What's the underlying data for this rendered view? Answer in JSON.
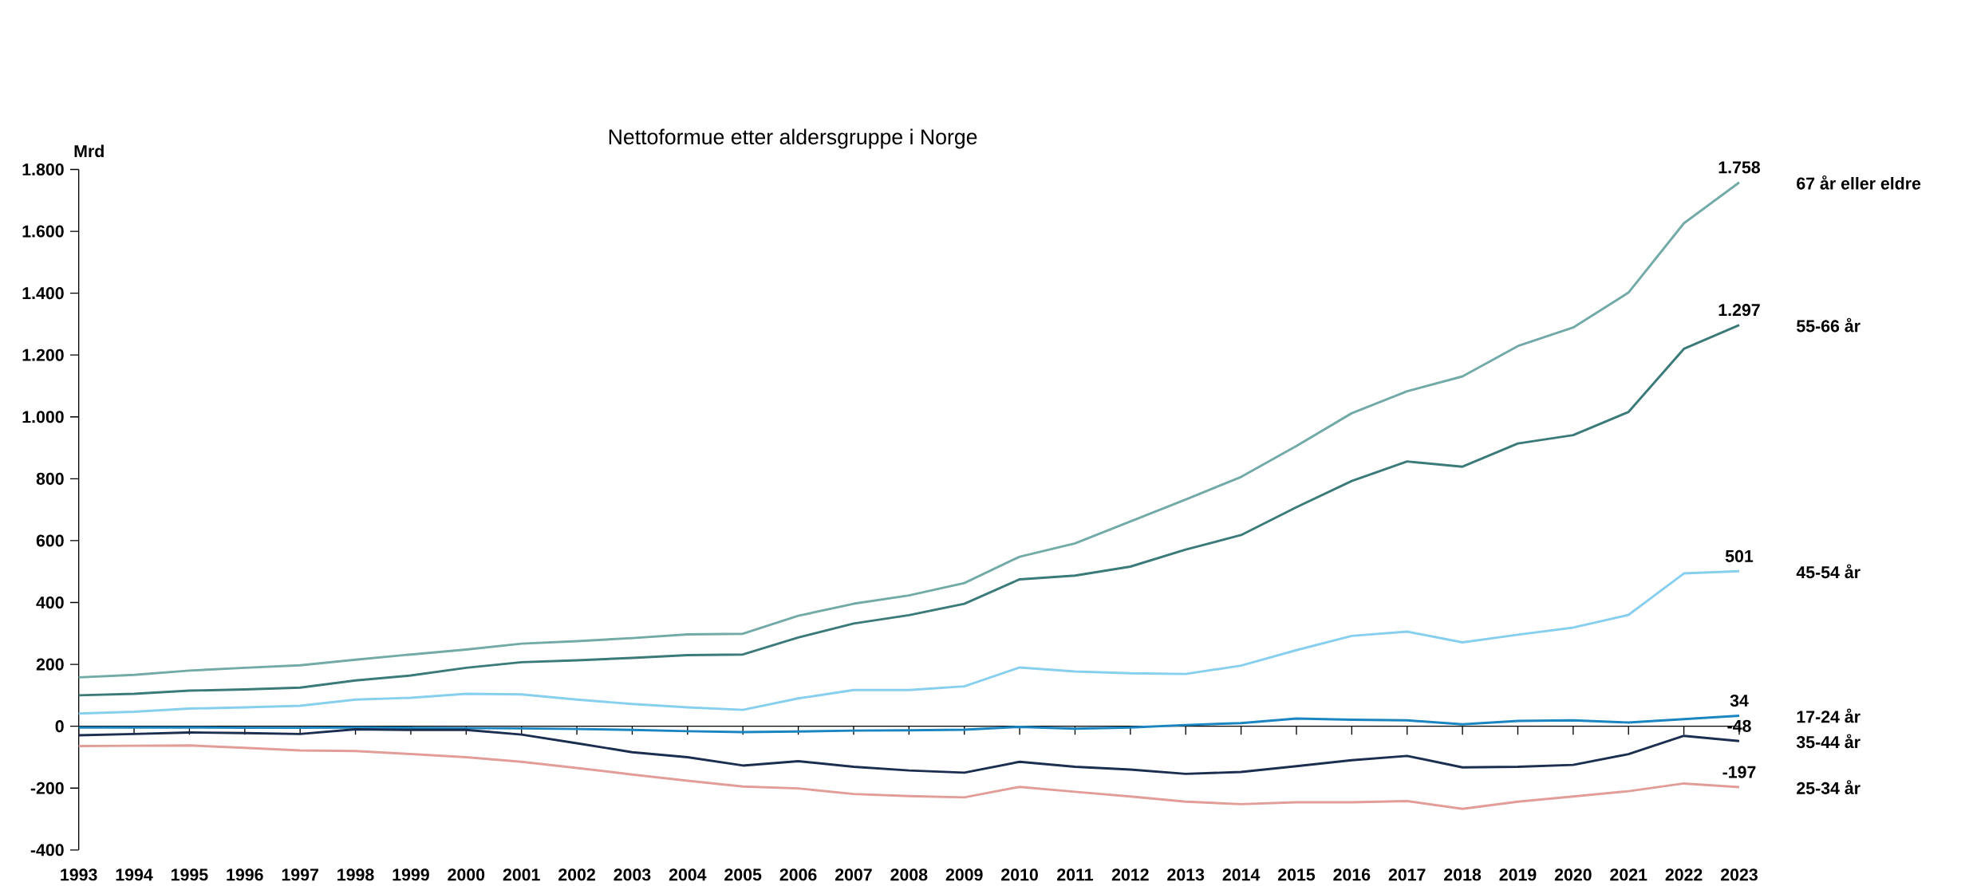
{
  "chart_data": {
    "type": "line",
    "title": "Nettoformue etter aldersgruppe i Norge",
    "ylabel": "Mrd",
    "categories": [
      "1993",
      "1994",
      "1995",
      "1996",
      "1997",
      "1998",
      "1999",
      "2000",
      "2001",
      "2002",
      "2003",
      "2004",
      "2005",
      "2006",
      "2007",
      "2008",
      "2009",
      "2010",
      "2011",
      "2012",
      "2013",
      "2014",
      "2015",
      "2016",
      "2017",
      "2018",
      "2019",
      "2020",
      "2021",
      "2022",
      "2023"
    ],
    "ylim": [
      -400,
      1800
    ],
    "yticks": [
      {
        "value": -400,
        "label": "-400"
      },
      {
        "value": -200,
        "label": "-200"
      },
      {
        "value": 0,
        "label": "0"
      },
      {
        "value": 200,
        "label": "200"
      },
      {
        "value": 400,
        "label": "400"
      },
      {
        "value": 600,
        "label": "600"
      },
      {
        "value": 800,
        "label": "800"
      },
      {
        "value": 1000,
        "label": "1.000"
      },
      {
        "value": 1200,
        "label": "1.200"
      },
      {
        "value": 1400,
        "label": "1.400"
      },
      {
        "value": 1600,
        "label": "1.600"
      },
      {
        "value": 1800,
        "label": "1.800"
      }
    ],
    "series": [
      {
        "name": "67 år eller eldre",
        "color": "#72aaa7",
        "values": [
          158,
          166,
          180,
          189,
          197,
          215,
          232,
          248,
          267,
          275,
          285,
          297,
          299,
          357,
          396,
          423,
          463,
          548,
          591,
          662,
          733,
          806,
          906,
          1012,
          1083,
          1131,
          1229,
          1289,
          1402,
          1626,
          1758
        ],
        "value_labels": [
          null,
          null,
          null,
          null,
          null,
          null,
          null,
          null,
          null,
          null,
          null,
          null,
          null,
          null,
          null,
          null,
          null,
          null,
          null,
          null,
          null,
          null,
          null,
          null,
          null,
          null,
          null,
          null,
          null,
          null,
          "1.758"
        ]
      },
      {
        "name": "55-66 år",
        "color": "#3a7a78",
        "values": [
          100,
          105,
          115,
          119,
          125,
          148,
          164,
          189,
          207,
          213,
          221,
          230,
          232,
          287,
          332,
          359,
          396,
          475,
          487,
          516,
          571,
          618,
          708,
          793,
          856,
          839,
          914,
          941,
          1016,
          1220,
          1297
        ],
        "value_labels": [
          null,
          null,
          null,
          null,
          null,
          null,
          null,
          null,
          null,
          null,
          null,
          null,
          null,
          null,
          null,
          null,
          null,
          null,
          null,
          null,
          null,
          null,
          null,
          null,
          null,
          null,
          null,
          null,
          null,
          null,
          "1.297"
        ]
      },
      {
        "name": "45-54 år",
        "color": "#87cfee",
        "values": [
          41,
          47,
          57,
          61,
          66,
          86,
          92,
          105,
          103,
          86,
          72,
          61,
          53,
          90,
          117,
          117,
          129,
          190,
          177,
          171,
          169,
          196,
          246,
          292,
          306,
          271,
          296,
          319,
          360,
          494,
          501
        ],
        "value_labels": [
          null,
          null,
          null,
          null,
          null,
          null,
          null,
          null,
          null,
          null,
          null,
          null,
          null,
          null,
          null,
          null,
          null,
          null,
          null,
          null,
          null,
          null,
          null,
          null,
          null,
          null,
          null,
          null,
          null,
          null,
          "501"
        ]
      },
      {
        "name": "17-24 år",
        "color": "#1a85c0",
        "values": [
          -4,
          -4,
          -4,
          -5,
          -5,
          -4,
          -5,
          -6,
          -7,
          -9,
          -12,
          -16,
          -19,
          -17,
          -14,
          -13,
          -11,
          -2,
          -8,
          -4,
          4,
          10,
          25,
          21,
          19,
          6,
          17,
          19,
          12,
          23,
          34
        ],
        "value_labels": [
          null,
          null,
          null,
          null,
          null,
          null,
          null,
          null,
          null,
          null,
          null,
          null,
          null,
          null,
          null,
          null,
          null,
          null,
          null,
          null,
          null,
          null,
          null,
          null,
          null,
          null,
          null,
          null,
          null,
          null,
          "34"
        ]
      },
      {
        "name": "35-44 år",
        "color": "#1b2e50",
        "values": [
          -29,
          -25,
          -20,
          -22,
          -25,
          -10,
          -12,
          -12,
          -27,
          -55,
          -84,
          -100,
          -127,
          -113,
          -131,
          -143,
          -150,
          -115,
          -131,
          -140,
          -154,
          -148,
          -129,
          -110,
          -96,
          -133,
          -131,
          -125,
          -90,
          -31,
          -48
        ],
        "value_labels": [
          null,
          null,
          null,
          null,
          null,
          null,
          null,
          null,
          null,
          null,
          null,
          null,
          null,
          null,
          null,
          null,
          null,
          null,
          null,
          null,
          null,
          null,
          null,
          null,
          null,
          null,
          null,
          null,
          null,
          null,
          "-48"
        ]
      },
      {
        "name": "25-34 år",
        "color": "#e29d98",
        "values": [
          -64,
          -63,
          -62,
          -70,
          -78,
          -80,
          -90,
          -100,
          -115,
          -135,
          -156,
          -176,
          -195,
          -201,
          -219,
          -226,
          -230,
          -196,
          -212,
          -227,
          -244,
          -252,
          -246,
          -246,
          -242,
          -267,
          -244,
          -227,
          -210,
          -185,
          -197
        ],
        "value_labels": [
          null,
          null,
          null,
          null,
          null,
          null,
          null,
          null,
          null,
          null,
          null,
          null,
          null,
          null,
          null,
          null,
          null,
          null,
          null,
          null,
          null,
          null,
          null,
          null,
          null,
          null,
          null,
          null,
          null,
          null,
          "-197"
        ]
      }
    ]
  }
}
